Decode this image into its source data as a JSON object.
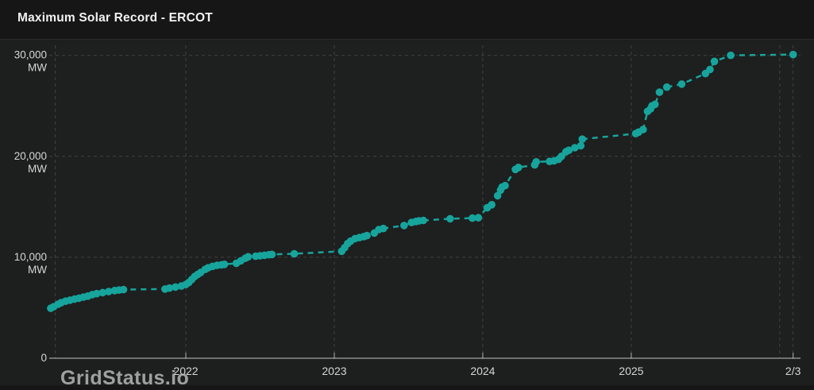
{
  "title": "Maximum Solar Record - ERCOT",
  "watermark": "GridStatus.io",
  "colors": {
    "background": "#161616",
    "panel": "#1D1E1E",
    "plot_bg": "#1E1F1F",
    "grid": "#414141",
    "axis_line": "#8C8C8C",
    "tick_mark": "#9A9A9A",
    "tick_text": "#D6D6D6",
    "title_text": "#F2F2F2",
    "series": "#17A49C",
    "watermark_text": "#BDBDBD"
  },
  "chart_data": {
    "type": "scatter",
    "title": "Maximum Solar Record - ERCOT",
    "x_unit": "decimal_year",
    "y_unit": "MW",
    "x_range": [
      2021.08,
      2026.14
    ],
    "y_range": [
      0,
      31000
    ],
    "grid": true,
    "legend": "none",
    "line_style": "dashed",
    "marker": "circle",
    "x_ticks": [
      {
        "value": 2022,
        "label": "2022"
      },
      {
        "value": 2023,
        "label": "2023"
      },
      {
        "value": 2024,
        "label": "2024"
      },
      {
        "value": 2025,
        "label": "2025"
      },
      {
        "value": 2026.09,
        "label": "2/3"
      }
    ],
    "extra_x_gridlines": [
      2021.12,
      2026.0
    ],
    "y_ticks": [
      {
        "value": 30000,
        "lines": [
          "30,000",
          "MW"
        ]
      },
      {
        "value": 20000,
        "lines": [
          "20,000",
          "MW"
        ]
      },
      {
        "value": 10000,
        "lines": [
          "10,000",
          "MW"
        ]
      },
      {
        "value": 0,
        "lines": [
          "0"
        ]
      }
    ],
    "series": [
      {
        "name": "Maximum Solar Record",
        "points": [
          [
            2021.09,
            4950
          ],
          [
            2021.11,
            5100
          ],
          [
            2021.14,
            5350
          ],
          [
            2021.16,
            5500
          ],
          [
            2021.19,
            5650
          ],
          [
            2021.22,
            5750
          ],
          [
            2021.25,
            5850
          ],
          [
            2021.28,
            5950
          ],
          [
            2021.31,
            6050
          ],
          [
            2021.34,
            6150
          ],
          [
            2021.37,
            6300
          ],
          [
            2021.4,
            6400
          ],
          [
            2021.44,
            6500
          ],
          [
            2021.48,
            6600
          ],
          [
            2021.52,
            6700
          ],
          [
            2021.55,
            6750
          ],
          [
            2021.58,
            6800
          ],
          [
            2021.86,
            6850
          ],
          [
            2021.89,
            6950
          ],
          [
            2021.93,
            7050
          ],
          [
            2021.97,
            7150
          ],
          [
            2022.0,
            7300
          ],
          [
            2022.02,
            7500
          ],
          [
            2022.04,
            7800
          ],
          [
            2022.06,
            8100
          ],
          [
            2022.08,
            8300
          ],
          [
            2022.1,
            8500
          ],
          [
            2022.13,
            8800
          ],
          [
            2022.15,
            8950
          ],
          [
            2022.18,
            9100
          ],
          [
            2022.21,
            9200
          ],
          [
            2022.24,
            9250
          ],
          [
            2022.26,
            9300
          ],
          [
            2022.34,
            9400
          ],
          [
            2022.37,
            9650
          ],
          [
            2022.4,
            9900
          ],
          [
            2022.42,
            10050
          ],
          [
            2022.47,
            10100
          ],
          [
            2022.5,
            10150
          ],
          [
            2022.53,
            10200
          ],
          [
            2022.56,
            10250
          ],
          [
            2022.58,
            10280
          ],
          [
            2022.73,
            10350
          ],
          [
            2023.05,
            10600
          ],
          [
            2023.07,
            10950
          ],
          [
            2023.09,
            11350
          ],
          [
            2023.11,
            11600
          ],
          [
            2023.14,
            11850
          ],
          [
            2023.17,
            11950
          ],
          [
            2023.2,
            12050
          ],
          [
            2023.22,
            12150
          ],
          [
            2023.27,
            12400
          ],
          [
            2023.3,
            12750
          ],
          [
            2023.33,
            12850
          ],
          [
            2023.47,
            13150
          ],
          [
            2023.52,
            13450
          ],
          [
            2023.55,
            13550
          ],
          [
            2023.57,
            13600
          ],
          [
            2023.6,
            13650
          ],
          [
            2023.78,
            13820
          ],
          [
            2023.93,
            13880
          ],
          [
            2023.97,
            13920
          ],
          [
            2024.03,
            14900
          ],
          [
            2024.06,
            15200
          ],
          [
            2024.1,
            16100
          ],
          [
            2024.12,
            16650
          ],
          [
            2024.13,
            16950
          ],
          [
            2024.15,
            17100
          ],
          [
            2024.22,
            18700
          ],
          [
            2024.24,
            18900
          ],
          [
            2024.35,
            19150
          ],
          [
            2024.36,
            19450
          ],
          [
            2024.45,
            19500
          ],
          [
            2024.48,
            19550
          ],
          [
            2024.51,
            19700
          ],
          [
            2024.53,
            20000
          ],
          [
            2024.56,
            20450
          ],
          [
            2024.58,
            20600
          ],
          [
            2024.62,
            20850
          ],
          [
            2024.66,
            21050
          ],
          [
            2024.67,
            21700
          ],
          [
            2025.03,
            22250
          ],
          [
            2025.05,
            22400
          ],
          [
            2025.08,
            22650
          ],
          [
            2025.11,
            24450
          ],
          [
            2025.13,
            24700
          ],
          [
            2025.14,
            25000
          ],
          [
            2025.16,
            25150
          ],
          [
            2025.19,
            26350
          ],
          [
            2025.24,
            26850
          ],
          [
            2025.34,
            27150
          ],
          [
            2025.5,
            28200
          ],
          [
            2025.53,
            28600
          ],
          [
            2025.56,
            29400
          ],
          [
            2025.67,
            30000
          ],
          [
            2026.09,
            30080
          ]
        ]
      }
    ]
  }
}
